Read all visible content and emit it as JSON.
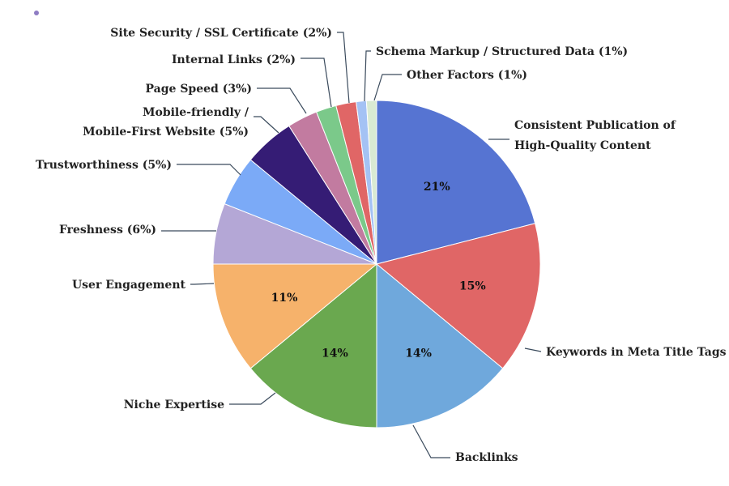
{
  "chart_data": {
    "type": "pie",
    "title": "",
    "start_angle_deg": 0,
    "direction": "clockwise",
    "slices": [
      {
        "label_lines": [
          "Consistent Publication of",
          "High-Quality Content"
        ],
        "value": 21,
        "pct_label": "21%",
        "color": "#5674d2"
      },
      {
        "label_lines": [
          "Keywords in Meta Title Tags"
        ],
        "value": 15,
        "pct_label": "15%",
        "color": "#e06666"
      },
      {
        "label_lines": [
          "Backlinks"
        ],
        "value": 14,
        "pct_label": "14%",
        "color": "#6fa8dc"
      },
      {
        "label_lines": [
          "Niche Expertise"
        ],
        "value": 14,
        "pct_label": "14%",
        "color": "#6aa84f"
      },
      {
        "label_lines": [
          "User Engagement"
        ],
        "value": 11,
        "pct_label": "11%",
        "color": "#f6b26b"
      },
      {
        "label_lines": [
          "Freshness (6%)"
        ],
        "value": 6,
        "pct_label": "",
        "color": "#b4a7d6"
      },
      {
        "label_lines": [
          "Trustworthiness (5%)"
        ],
        "value": 5,
        "pct_label": "",
        "color": "#7baaf7"
      },
      {
        "label_lines": [
          "Mobile-friendly /",
          "Mobile-First Website (5%)"
        ],
        "value": 5,
        "pct_label": "",
        "color": "#351c75"
      },
      {
        "label_lines": [
          "Page Speed (3%)"
        ],
        "value": 3,
        "pct_label": "",
        "color": "#c27ba0"
      },
      {
        "label_lines": [
          "Internal Links (2%)"
        ],
        "value": 2,
        "pct_label": "",
        "color": "#7bc98a"
      },
      {
        "label_lines": [
          "Site Security / SSL Certificate (2%)"
        ],
        "value": 2,
        "pct_label": "",
        "color": "#e06666"
      },
      {
        "label_lines": [
          "Schema Markup / Structured Data (1%)"
        ],
        "value": 1,
        "pct_label": "",
        "color": "#a4c2f4"
      },
      {
        "label_lines": [
          "Other Factors (1%)"
        ],
        "value": 1,
        "pct_label": "",
        "color": "#d9ead3"
      }
    ]
  },
  "decor": {
    "dot_color": "#8e7cc3"
  }
}
